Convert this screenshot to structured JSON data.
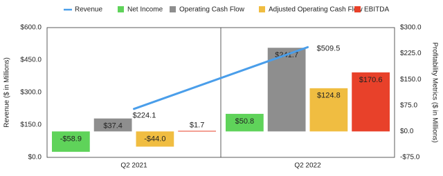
{
  "chart_data": {
    "type": "bar",
    "legend": "top",
    "categories": [
      "Q2 2021",
      "Q2 2022"
    ],
    "ylabel": "Revenue ($ in Millions)",
    "y2label": "Profitability Metrics ($ in Millions)",
    "ylim": [
      0,
      600
    ],
    "yticks": [
      {
        "value": 0,
        "label": "$0.0"
      },
      {
        "value": 150,
        "label": "$150.0"
      },
      {
        "value": 300,
        "label": "$300.0"
      },
      {
        "value": 450,
        "label": "$450.0"
      },
      {
        "value": 600,
        "label": "$600.0"
      }
    ],
    "y2lim": [
      -75,
      300
    ],
    "y2ticks": [
      {
        "value": -75,
        "label": "-$75.0"
      },
      {
        "value": 0,
        "label": "$0.0"
      },
      {
        "value": 75,
        "label": "$75.0"
      },
      {
        "value": 150,
        "label": "$150.0"
      },
      {
        "value": 225,
        "label": "$225.0"
      },
      {
        "value": 300,
        "label": "$300.0"
      }
    ],
    "series": [
      {
        "name": "Revenue",
        "type": "line",
        "color": "#4a9eea",
        "values": [
          224.1,
          509.5
        ],
        "value_labels": [
          "$224.1",
          "$509.5"
        ]
      },
      {
        "name": "Net Income",
        "type": "bar",
        "axis": "y2",
        "color": "#5fd35a",
        "values": [
          -58.9,
          50.8
        ],
        "value_labels": [
          "-$58.9",
          "$50.8"
        ]
      },
      {
        "name": "Operating Cash Flow",
        "type": "bar",
        "axis": "y2",
        "color": "#8e8e8e",
        "values": [
          37.4,
          241.7
        ],
        "value_labels": [
          "$37.4",
          "$241.7"
        ]
      },
      {
        "name": "Adjusted Operating Cash Flow",
        "type": "bar",
        "axis": "y2",
        "color": "#f0bd41",
        "values": [
          -44.0,
          124.8
        ],
        "value_labels": [
          "-$44.0",
          "$124.8"
        ]
      },
      {
        "name": "EBITDA",
        "type": "bar",
        "axis": "y2",
        "color": "#e8412a",
        "values": [
          1.7,
          170.6
        ],
        "value_labels": [
          "$1.7",
          "$170.6"
        ]
      }
    ]
  }
}
